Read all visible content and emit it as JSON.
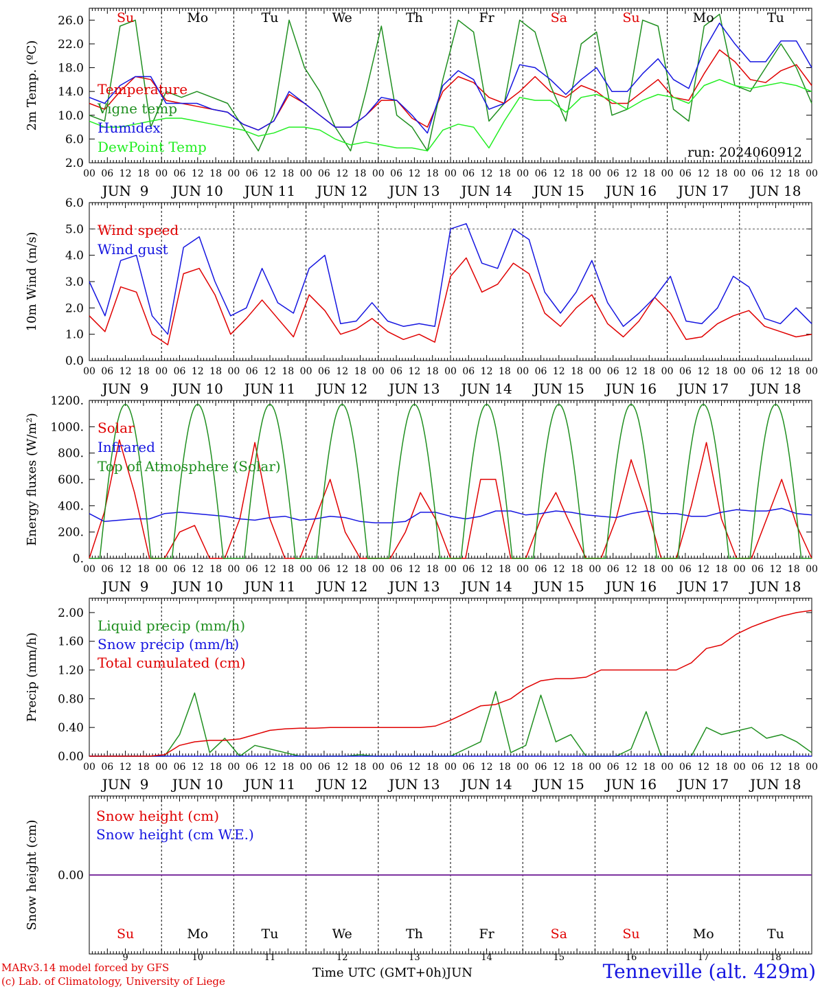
{
  "meta": {
    "run": "run: 2024060912"
  },
  "days": {
    "weekday": [
      "Su",
      "Mo",
      "Tu",
      "We",
      "Th",
      "Fr",
      "Sa",
      "Su",
      "Mo",
      "Tu"
    ],
    "weekday_colors": [
      "#e00000",
      "#000000",
      "#000000",
      "#000000",
      "#000000",
      "#000000",
      "#e00000",
      "#e00000",
      "#000000",
      "#000000"
    ],
    "date_labels": [
      "JUN  9",
      "JUN 10",
      "JUN 11",
      "JUN 12",
      "JUN 13",
      "JUN 14",
      "JUN 15",
      "JUN 16",
      "JUN 17",
      "JUN 18"
    ],
    "day_numbers": [
      "9",
      "10",
      "11",
      "12",
      "13",
      "14",
      "15",
      "16",
      "17",
      "18"
    ],
    "hour_ticks": [
      "00",
      "06",
      "12",
      "18"
    ]
  },
  "footer": {
    "credit_line1": "MARv3.14 model forced by GFS",
    "credit_line2": "(c) Lab. of Climatology, University of Liege",
    "x_axis_title": "Time UTC (GMT+0h)",
    "month": "JUN",
    "station": "Tenneville (alt. 429m)"
  },
  "chart_data": [
    {
      "type": "line",
      "ylabel": "2m Temp. (ºC)",
      "ylim": [
        2,
        28
      ],
      "yticks": [
        "2.0",
        "6.0",
        "10.0",
        "14.0",
        "18.0",
        "22.0",
        "26.0"
      ],
      "ytick_values": [
        2,
        6,
        10,
        14,
        18,
        22,
        26
      ],
      "x_start": "2024-06-09 00 UTC",
      "x_step_hours": 6,
      "series": [
        {
          "name": "Temperature",
          "color": "#e00000",
          "values": [
            12,
            11,
            14,
            16.5,
            16,
            12.5,
            12,
            11.5,
            11,
            10.5,
            8.5,
            7.5,
            9,
            13.5,
            12,
            10,
            8,
            8,
            10,
            12.5,
            12.5,
            9.5,
            8,
            14,
            16.5,
            15.5,
            13,
            12,
            14,
            16.5,
            14,
            13,
            15,
            14,
            12,
            12,
            14,
            16,
            13,
            12.5,
            17,
            21,
            19,
            16,
            15.5,
            17.5,
            18.5,
            15
          ]
        },
        {
          "name": "Vigne temp",
          "color": "#1f8f1f",
          "values": [
            10,
            9,
            25,
            26,
            8,
            14,
            13,
            14,
            13,
            12,
            8,
            4,
            10,
            26,
            18,
            14,
            8,
            4,
            14,
            25,
            10,
            8,
            4,
            16,
            26,
            24,
            9,
            12,
            26,
            24,
            15,
            9,
            22,
            24,
            10,
            11,
            26,
            25,
            11,
            9,
            25,
            27,
            15,
            14,
            18,
            22,
            18,
            12
          ]
        },
        {
          "name": "Humidex",
          "color": "#1515e0",
          "values": [
            13,
            12,
            15,
            16.5,
            16.5,
            12,
            12,
            12,
            11,
            10.5,
            8.5,
            7.5,
            9,
            14,
            12,
            10,
            8,
            8,
            10,
            13,
            12.5,
            10,
            7,
            15,
            17.5,
            16,
            11,
            12,
            18.5,
            18,
            16,
            13.5,
            16,
            18,
            14,
            14,
            17,
            19.5,
            16,
            14.5,
            21,
            25.5,
            22,
            19,
            19,
            22.5,
            22.5,
            18
          ]
        },
        {
          "name": "DewPoint Temp",
          "color": "#22ee22",
          "values": [
            9,
            8,
            8,
            8.5,
            9,
            9.5,
            9.5,
            9,
            8.5,
            8,
            7.5,
            6.5,
            7,
            8,
            8,
            7.5,
            6,
            5,
            5.5,
            5,
            4.5,
            4.5,
            4,
            7.5,
            8.5,
            8,
            4.5,
            9,
            13,
            12.5,
            12.5,
            10.5,
            13,
            13.5,
            12.5,
            11,
            12.5,
            13.5,
            13,
            12,
            15,
            16,
            15,
            14.5,
            15,
            15.5,
            15,
            14
          ]
        }
      ]
    },
    {
      "type": "line",
      "ylabel": "10m Wind (m/s)",
      "ylim": [
        0,
        6
      ],
      "yticks": [
        "0.0",
        "1.0",
        "2.0",
        "3.0",
        "4.0",
        "5.0",
        "6.0"
      ],
      "ytick_values": [
        0,
        1,
        2,
        3,
        4,
        5,
        6
      ],
      "reference_line": 5.0,
      "x_start": "2024-06-09 00 UTC",
      "x_step_hours": 6,
      "series": [
        {
          "name": "Wind speed",
          "color": "#e00000",
          "values": [
            1.7,
            1.1,
            2.8,
            2.6,
            1.0,
            0.6,
            3.3,
            3.5,
            2.5,
            1.0,
            1.6,
            2.3,
            1.6,
            0.9,
            2.5,
            1.9,
            1.0,
            1.2,
            1.6,
            1.1,
            0.8,
            1.0,
            0.7,
            3.2,
            3.9,
            2.6,
            2.9,
            3.7,
            3.3,
            1.8,
            1.3,
            2.0,
            2.5,
            1.4,
            0.9,
            1.5,
            2.4,
            1.8,
            0.8,
            0.9,
            1.4,
            1.7,
            1.9,
            1.3,
            1.1,
            0.9,
            1.0
          ]
        },
        {
          "name": "Wind gust",
          "color": "#1515e0",
          "values": [
            3.0,
            1.7,
            3.8,
            4.0,
            1.7,
            1.0,
            4.3,
            4.7,
            3.0,
            1.7,
            2.0,
            3.5,
            2.2,
            1.8,
            3.5,
            4.0,
            1.4,
            1.5,
            2.2,
            1.5,
            1.3,
            1.4,
            1.3,
            5.0,
            5.2,
            3.7,
            3.5,
            5.0,
            4.6,
            2.6,
            1.8,
            2.6,
            3.8,
            2.2,
            1.3,
            1.8,
            2.4,
            3.2,
            1.5,
            1.4,
            2.0,
            3.2,
            2.8,
            1.6,
            1.4,
            2.0,
            1.4
          ]
        }
      ]
    },
    {
      "type": "line",
      "ylabel": "Energy fluxes (W/m²)",
      "ylim": [
        0,
        1200
      ],
      "yticks": [
        "0.",
        "200.",
        "400.",
        "600.",
        "800.",
        "1000.",
        "1200."
      ],
      "ytick_values": [
        0,
        200,
        400,
        600,
        800,
        1000,
        1200
      ],
      "x_start": "2024-06-09 00 UTC",
      "x_step_hours": 6,
      "series": [
        {
          "name": "Solar",
          "color": "#e00000",
          "values": [
            0,
            350,
            900,
            500,
            0,
            0,
            200,
            250,
            0,
            0,
            300,
            880,
            300,
            0,
            0,
            300,
            600,
            200,
            0,
            0,
            0,
            200,
            500,
            300,
            0,
            0,
            600,
            600,
            0,
            0,
            300,
            500,
            250,
            0,
            0,
            300,
            750,
            400,
            0,
            0,
            400,
            880,
            300,
            0,
            0,
            300,
            600,
            250,
            0
          ]
        },
        {
          "name": "Infrared",
          "color": "#1515e0",
          "values": [
            340,
            280,
            290,
            300,
            300,
            340,
            350,
            340,
            330,
            320,
            300,
            290,
            310,
            320,
            290,
            300,
            320,
            310,
            280,
            270,
            270,
            280,
            350,
            350,
            320,
            300,
            320,
            360,
            360,
            330,
            340,
            360,
            350,
            330,
            320,
            310,
            340,
            360,
            340,
            340,
            320,
            320,
            350,
            370,
            360,
            360,
            380,
            340,
            330
          ]
        },
        {
          "name": "Top of Atmosphere (Solar)",
          "color": "#1f8f1f",
          "peak": 1170,
          "daylight_hours_utc": [
            3.5,
            20.5
          ]
        }
      ]
    },
    {
      "type": "line",
      "ylabel": "Precip (mm/h)",
      "ylim": [
        0,
        2.2
      ],
      "yticks": [
        "0.00",
        "0.40",
        "0.80",
        "1.20",
        "1.60",
        "2.00"
      ],
      "ytick_values": [
        0,
        0.4,
        0.8,
        1.2,
        1.6,
        2.0
      ],
      "x_start": "2024-06-09 00 UTC",
      "x_step_hours": 6,
      "series": [
        {
          "name": "Liquid precip (mm/h)",
          "color": "#1f8f1f",
          "values": [
            0,
            0,
            0,
            0,
            0,
            0,
            0.3,
            0.88,
            0.05,
            0.25,
            0,
            0.15,
            0.1,
            0.05,
            0,
            0,
            0,
            0,
            0.02,
            0,
            0,
            0,
            0,
            0,
            0,
            0.1,
            0.2,
            0.9,
            0.05,
            0.15,
            0.85,
            0.2,
            0.3,
            0,
            0,
            0,
            0.1,
            0.62,
            0,
            0,
            0,
            0.4,
            0.3,
            0.35,
            0.4,
            0.25,
            0.3,
            0.2,
            0.05
          ]
        },
        {
          "name": "Snow precip (mm/h)",
          "color": "#1515e0",
          "values": [
            0,
            0,
            0,
            0,
            0,
            0,
            0,
            0,
            0,
            0,
            0,
            0,
            0,
            0,
            0,
            0,
            0,
            0,
            0,
            0,
            0,
            0,
            0,
            0,
            0,
            0,
            0,
            0,
            0,
            0,
            0,
            0,
            0,
            0,
            0,
            0,
            0,
            0,
            0,
            0,
            0,
            0,
            0,
            0,
            0,
            0,
            0,
            0,
            0
          ]
        },
        {
          "name": "Total cumulated (cm)",
          "color": "#e00000",
          "values": [
            0,
            0,
            0,
            0,
            0,
            0.02,
            0.15,
            0.2,
            0.22,
            0.22,
            0.24,
            0.3,
            0.36,
            0.38,
            0.39,
            0.39,
            0.4,
            0.4,
            0.4,
            0.4,
            0.4,
            0.4,
            0.4,
            0.42,
            0.5,
            0.6,
            0.7,
            0.72,
            0.8,
            0.95,
            1.05,
            1.08,
            1.08,
            1.1,
            1.2,
            1.2,
            1.2,
            1.2,
            1.2,
            1.2,
            1.3,
            1.5,
            1.55,
            1.7,
            1.8,
            1.88,
            1.95,
            2.0,
            2.03
          ]
        }
      ]
    },
    {
      "type": "line",
      "ylabel": "Snow height (cm)",
      "ylim": [
        -1,
        1
      ],
      "yticks": [
        "0.00"
      ],
      "ytick_values": [
        0
      ],
      "x_start": "2024-06-09 00 UTC",
      "x_step_hours": 6,
      "series": [
        {
          "name": "Snow height (cm)",
          "color": "#e00000",
          "values": [
            0,
            0,
            0,
            0,
            0,
            0,
            0,
            0,
            0,
            0,
            0
          ]
        },
        {
          "name": "Snow height (cm W.E.)",
          "color": "#1515e0",
          "values": [
            0,
            0,
            0,
            0,
            0,
            0,
            0,
            0,
            0,
            0,
            0
          ]
        }
      ]
    }
  ]
}
